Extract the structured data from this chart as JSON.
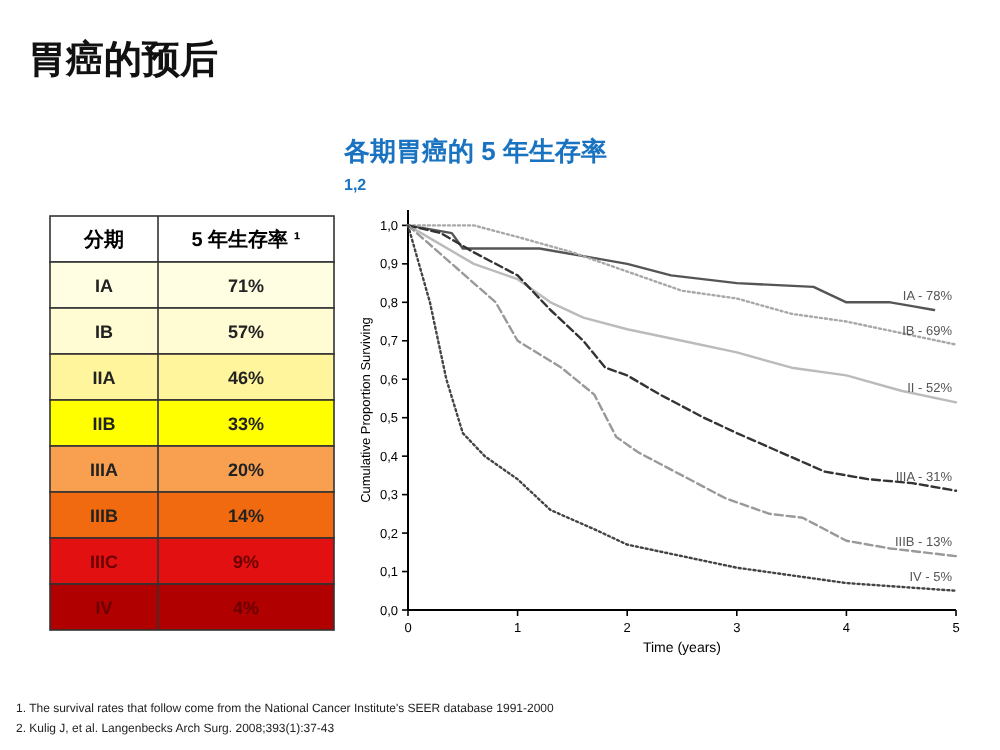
{
  "chart_data": [
    {
      "type": "other",
      "title": "胃癌的预后",
      "xlabel": "分期",
      "ylabel": "5 年生存率 ¹",
      "categories": [
        "IA",
        "IB",
        "IIA",
        "IIB",
        "IIIA",
        "IIIB",
        "IIIC",
        "IV"
      ],
      "value_labels": [
        "71%",
        "57%",
        "46%",
        "33%",
        "20%",
        "14%",
        "9%",
        "4%"
      ],
      "colors": [
        "#fffde2",
        "#fffbd2",
        "#fff59c",
        "#ffff00",
        "#f8a050",
        "#f26a10",
        "#e21010",
        "#b00000"
      ]
    },
    {
      "type": "line",
      "title": "各期胃癌的 5 年生存率",
      "subtitle": "1,2",
      "xlabel": "Time (years)",
      "ylabel": "Cumulative Proportion Surviving",
      "xlim": [
        0,
        5
      ],
      "xticks": [
        0,
        1,
        2,
        3,
        4,
        5
      ],
      "ylim": [
        0,
        1.04
      ],
      "yticks": [
        {
          "value": 0,
          "label": "0,0"
        },
        {
          "value": 0.1,
          "label": "0,1"
        },
        {
          "value": 0.2,
          "label": "0,2"
        },
        {
          "value": 0.3,
          "label": "0,3"
        },
        {
          "value": 0.4,
          "label": "0,4"
        },
        {
          "value": 0.5,
          "label": "0,5"
        },
        {
          "value": 0.6,
          "label": "0,6"
        },
        {
          "value": 0.7,
          "label": "0,7"
        },
        {
          "value": 0.8,
          "label": "0,8"
        },
        {
          "value": 0.9,
          "label": "0,9"
        },
        {
          "value": 1,
          "label": "1,0"
        }
      ],
      "grid": false,
      "legend": false,
      "marker": "none",
      "series": [
        {
          "name": "IA - 78%",
          "color": "#555555",
          "line_style": "solid",
          "x": [
            0,
            0.4,
            0.5,
            1.2,
            1.6,
            2.0,
            2.4,
            3.0,
            3.7,
            4.0,
            4.4,
            4.6,
            4.8
          ],
          "values": [
            1.0,
            0.98,
            0.94,
            0.94,
            0.92,
            0.9,
            0.87,
            0.85,
            0.84,
            0.8,
            0.8,
            0.79,
            0.78
          ]
        },
        {
          "name": "IB - 69%",
          "color": "#a8a8a8",
          "line_style": "dotted",
          "x": [
            0,
            0.6,
            1.0,
            1.5,
            2.0,
            2.5,
            3.0,
            3.5,
            4.0,
            4.5,
            5.0
          ],
          "values": [
            1.0,
            1.0,
            0.97,
            0.93,
            0.88,
            0.83,
            0.81,
            0.77,
            0.75,
            0.72,
            0.69
          ]
        },
        {
          "name": "II - 52%",
          "color": "#bbbbbb",
          "line_style": "solid",
          "x": [
            0,
            0.3,
            0.6,
            1.0,
            1.3,
            1.6,
            2.0,
            2.5,
            3.0,
            3.5,
            4.0,
            4.5,
            5.0
          ],
          "values": [
            1.0,
            0.95,
            0.9,
            0.86,
            0.8,
            0.76,
            0.73,
            0.7,
            0.67,
            0.63,
            0.61,
            0.57,
            0.54
          ]
        },
        {
          "name": "IIIA - 31%",
          "color": "#333333",
          "line_style": "dashed",
          "x": [
            0,
            0.3,
            0.6,
            1.0,
            1.3,
            1.6,
            1.8,
            2.0,
            2.3,
            2.7,
            3.0,
            3.4,
            3.8,
            4.2,
            4.6,
            5.0
          ],
          "values": [
            1.0,
            0.98,
            0.93,
            0.87,
            0.78,
            0.7,
            0.63,
            0.61,
            0.56,
            0.5,
            0.46,
            0.41,
            0.36,
            0.34,
            0.33,
            0.31
          ]
        },
        {
          "name": "IIIB - 13%",
          "color": "#999999",
          "line_style": "dashed",
          "x": [
            0,
            0.4,
            0.8,
            1.0,
            1.4,
            1.7,
            1.9,
            2.1,
            2.5,
            2.9,
            3.3,
            3.6,
            4.0,
            4.4,
            5.0
          ],
          "values": [
            1.0,
            0.9,
            0.8,
            0.7,
            0.63,
            0.56,
            0.45,
            0.41,
            0.35,
            0.29,
            0.25,
            0.24,
            0.18,
            0.16,
            0.14
          ]
        },
        {
          "name": "IV - 5%",
          "color": "#444444",
          "line_style": "dotted",
          "x": [
            0,
            0.2,
            0.35,
            0.5,
            0.7,
            1.0,
            1.3,
            1.7,
            2.0,
            2.5,
            3.0,
            3.5,
            4.0,
            4.5,
            5.0
          ],
          "values": [
            1.0,
            0.8,
            0.6,
            0.46,
            0.4,
            0.34,
            0.26,
            0.21,
            0.17,
            0.14,
            0.11,
            0.09,
            0.07,
            0.06,
            0.05
          ]
        }
      ],
      "annotations": [
        "1.   The survival rates that follow come from the National Cancer Institute's SEER database 1991-2000",
        "2.   Kulig J, et al. Langenbecks Arch Surg. 2008;393(1):37-43"
      ]
    }
  ]
}
